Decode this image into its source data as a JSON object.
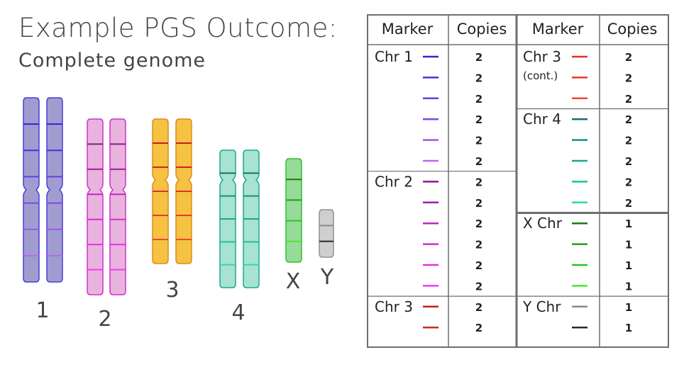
{
  "title": "Example PGS Outcome:",
  "subtitle": "Complete genome",
  "karyotype": {
    "labels": [
      "1",
      "2",
      "3",
      "4",
      "X",
      "Y"
    ]
  },
  "table": {
    "header_marker": "Marker",
    "header_copies": "Copies",
    "left_groups": [
      {
        "label": "Chr 1",
        "sub": "",
        "markers": [
          {
            "color": "#3a1fd6",
            "copies": "2"
          },
          {
            "color": "#4b2ee0",
            "copies": "2"
          },
          {
            "color": "#6a3ce6",
            "copies": "2"
          },
          {
            "color": "#7d47ea",
            "copies": "2"
          },
          {
            "color": "#9a57ee",
            "copies": "2"
          },
          {
            "color": "#b46af2",
            "copies": "2"
          }
        ]
      },
      {
        "label": "Chr 2",
        "sub": "",
        "markers": [
          {
            "color": "#8a1a8e",
            "copies": "2"
          },
          {
            "color": "#a21ea8",
            "copies": "2"
          },
          {
            "color": "#c224c6",
            "copies": "2"
          },
          {
            "color": "#d82ad8",
            "copies": "2"
          },
          {
            "color": "#e630e4",
            "copies": "2"
          },
          {
            "color": "#f03cf0",
            "copies": "2"
          }
        ]
      },
      {
        "label": "Chr 3",
        "sub": "",
        "markers": [
          {
            "color": "#c81e1e",
            "copies": "2"
          },
          {
            "color": "#d42424",
            "copies": "2"
          }
        ]
      }
    ],
    "right_groups": [
      {
        "label": "Chr 3",
        "sub": "(cont.)",
        "markers": [
          {
            "color": "#e0302a",
            "copies": "2"
          },
          {
            "color": "#e63a2c",
            "copies": "2"
          },
          {
            "color": "#ec4a30",
            "copies": "2"
          }
        ]
      },
      {
        "label": "Chr 4",
        "sub": "",
        "markers": [
          {
            "color": "#14706a",
            "copies": "2"
          },
          {
            "color": "#169080",
            "copies": "2"
          },
          {
            "color": "#1aa890",
            "copies": "2"
          },
          {
            "color": "#22c09a",
            "copies": "2"
          },
          {
            "color": "#3ad4a8",
            "copies": "2"
          }
        ]
      },
      {
        "label": "X Chr",
        "sub": "",
        "markers": [
          {
            "color": "#1a7a14",
            "copies": "1"
          },
          {
            "color": "#22a01a",
            "copies": "1"
          },
          {
            "color": "#2cc424",
            "copies": "1"
          },
          {
            "color": "#4ae830",
            "copies": "1"
          }
        ]
      },
      {
        "label": "Y Chr",
        "sub": "",
        "markers": [
          {
            "color": "#8a8a8a",
            "copies": "1"
          },
          {
            "color": "#2a2a2a",
            "copies": "1"
          }
        ]
      }
    ]
  }
}
